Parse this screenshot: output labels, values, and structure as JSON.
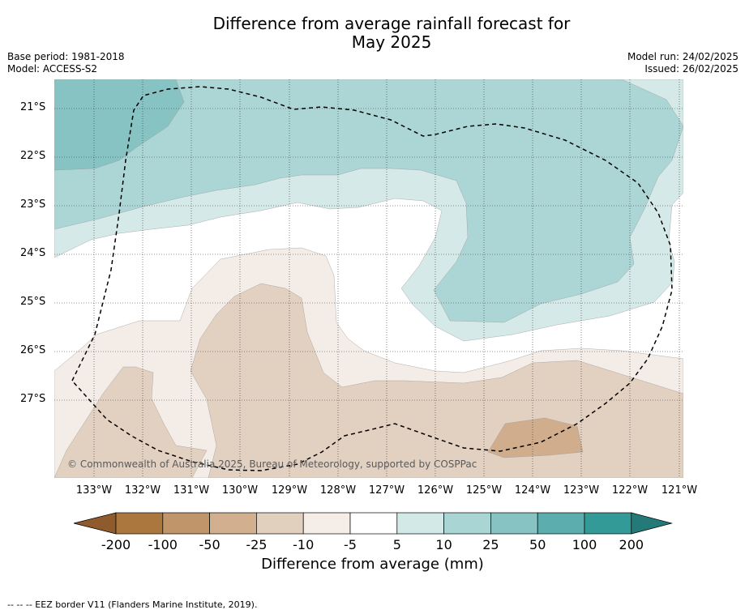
{
  "header": {
    "title_line1": "Difference from average rainfall forecast for",
    "title_line2": "May 2025",
    "base_period": "Base period: 1981-2018",
    "model": "Model: ACCESS-S2",
    "model_run": "Model run: 24/02/2025",
    "issued": "Issued: 26/02/2025"
  },
  "map": {
    "latitude_labels": [
      "21°S",
      "22°S",
      "23°S",
      "24°S",
      "25°S",
      "26°S",
      "27°S"
    ],
    "longitude_labels": [
      "133°W",
      "132°W",
      "131°W",
      "130°W",
      "129°W",
      "128°W",
      "127°W",
      "126°W",
      "125°W",
      "124°W",
      "123°W",
      "122°W",
      "121°W"
    ],
    "copyright": "© Commonwealth of Australia 2025, Bureau of Meteorology, supported by COSPPac",
    "colors": {
      "wet_5_10": "#d4e9e8",
      "wet_10_25": "#acd6d5",
      "wet_25_50": "#86c3c2",
      "dry_5_10": "#f4ede7",
      "dry_10_25": "#e2d0c0",
      "dry_25_50": "#d0ae8d"
    }
  },
  "colorbar": {
    "labels": [
      "-200",
      "-100",
      "-50",
      "-25",
      "-10",
      "-5",
      "5",
      "10",
      "25",
      "50",
      "100",
      "200"
    ],
    "colors": [
      "#8f5b2c",
      "#ab773f",
      "#c0956a",
      "#d2b08f",
      "#e2d0bf",
      "#f4ede8",
      "#ffffff",
      "#d3e9e8",
      "#a9d6d5",
      "#86c3c2",
      "#5caeae",
      "#339a98",
      "#247a78"
    ],
    "title": "Difference from average (mm)"
  },
  "footer": {
    "legend_text": "--  --  -- EEZ border V11 (Flanders Marine Institute, 2019)."
  }
}
